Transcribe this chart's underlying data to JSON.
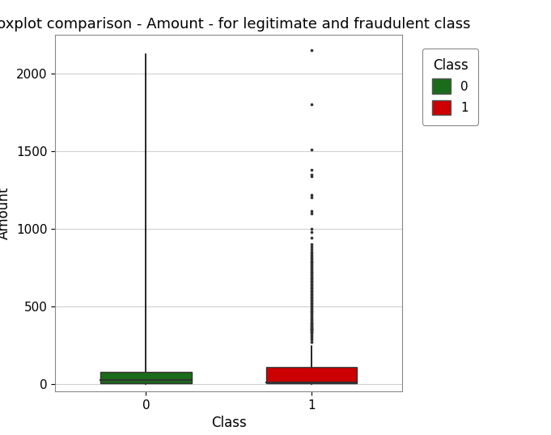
{
  "title": "Boxplot comparison - Amount - for legitimate and fraudulent class",
  "xlabel": "Class",
  "ylabel": "Amount",
  "background_color": "#ffffff",
  "panel_background": "#ffffff",
  "grid_color": "#d0d0d0",
  "classes": [
    "0",
    "1"
  ],
  "class0": {
    "color": "#1a6b1a",
    "whisker_lo": 0,
    "whisker_hi": 2125,
    "q1": 5,
    "median": 22,
    "q3": 77,
    "outliers": []
  },
  "class1": {
    "color": "#cc0000",
    "whisker_lo": 0,
    "whisker_hi": 245,
    "q1": 1,
    "median": 9,
    "q3": 105,
    "outliers": [
      270,
      285,
      295,
      305,
      315,
      325,
      330,
      335,
      340,
      345,
      350,
      355,
      360,
      365,
      370,
      375,
      380,
      385,
      390,
      395,
      400,
      408,
      415,
      422,
      430,
      437,
      445,
      452,
      460,
      468,
      475,
      482,
      490,
      497,
      505,
      512,
      520,
      527,
      534,
      541,
      548,
      555,
      562,
      569,
      576,
      583,
      590,
      597,
      604,
      611,
      618,
      625,
      632,
      639,
      646,
      653,
      660,
      667,
      674,
      681,
      688,
      695,
      702,
      710,
      718,
      725,
      733,
      740,
      748,
      755,
      763,
      770,
      778,
      785,
      793,
      800,
      810,
      820,
      830,
      840,
      855,
      870,
      885,
      900,
      940,
      980,
      1000,
      1100,
      1115,
      1200,
      1220,
      1340,
      1350,
      1380,
      1510,
      1800,
      2150
    ]
  },
  "ylim": [
    -50,
    2250
  ],
  "yticks": [
    0,
    500,
    1000,
    1500,
    2000
  ],
  "box_width": 0.55,
  "legend_title": "Class",
  "legend_labels": [
    "0",
    "1"
  ],
  "legend_colors": [
    "#1a6b1a",
    "#cc0000"
  ],
  "title_fontsize": 13,
  "axis_label_fontsize": 12,
  "tick_fontsize": 11
}
